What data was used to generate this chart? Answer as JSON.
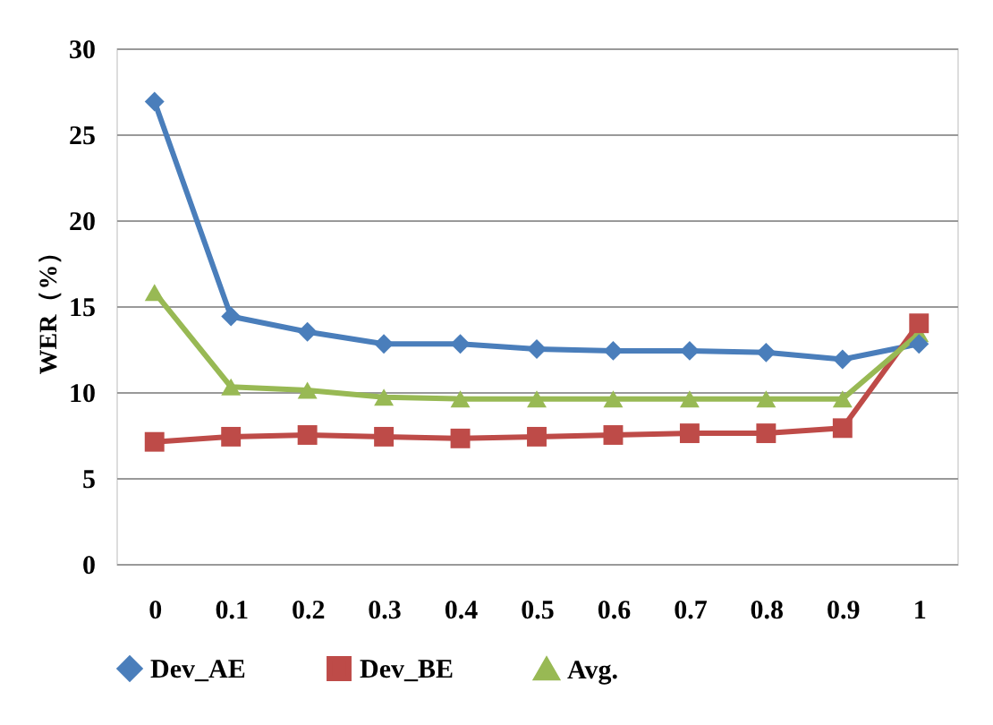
{
  "chart_data": {
    "type": "line",
    "ylabel": "WER（%）",
    "categories": [
      "0",
      "0.1",
      "0.2",
      "0.3",
      "0.4",
      "0.5",
      "0.6",
      "0.7",
      "0.8",
      "0.9",
      "1"
    ],
    "series": [
      {
        "name": "Dev_AE",
        "color": "#4a7ebb",
        "marker": "diamond",
        "values": [
          26.9,
          14.4,
          13.5,
          12.8,
          12.8,
          12.5,
          12.4,
          12.4,
          12.3,
          11.9,
          12.8
        ]
      },
      {
        "name": "Dev_BE",
        "color": "#be4b48",
        "marker": "square",
        "values": [
          7.1,
          7.4,
          7.5,
          7.4,
          7.3,
          7.4,
          7.5,
          7.6,
          7.6,
          7.9,
          14.0
        ]
      },
      {
        "name": "Avg.",
        "color": "#98b954",
        "marker": "triangle",
        "values": [
          15.8,
          10.3,
          10.1,
          9.7,
          9.6,
          9.6,
          9.6,
          9.6,
          9.6,
          9.6,
          13.4
        ]
      }
    ],
    "ylim": [
      0,
      30
    ],
    "yticks": [
      0,
      5,
      10,
      15,
      20,
      25,
      30
    ],
    "grid": "y",
    "legend": "bottom",
    "line_style": "solid"
  }
}
